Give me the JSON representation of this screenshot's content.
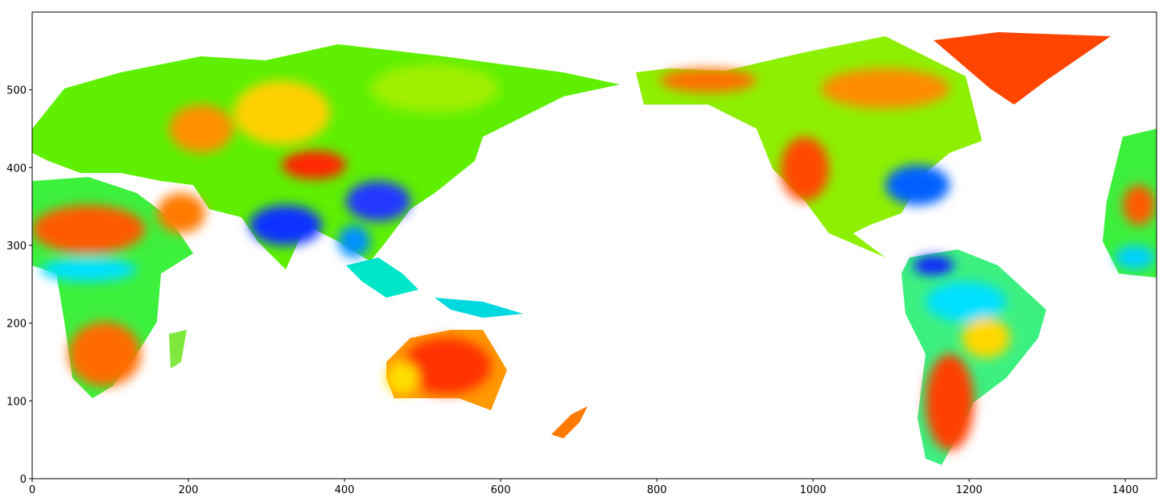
{
  "chart_data": {
    "type": "image",
    "xlim": [
      0,
      1440
    ],
    "ylim": [
      0,
      600
    ],
    "xticks": [
      0,
      200,
      400,
      600,
      800,
      1000,
      1200,
      1400
    ],
    "yticks": [
      0,
      100,
      200,
      300,
      400,
      500
    ]
  }
}
